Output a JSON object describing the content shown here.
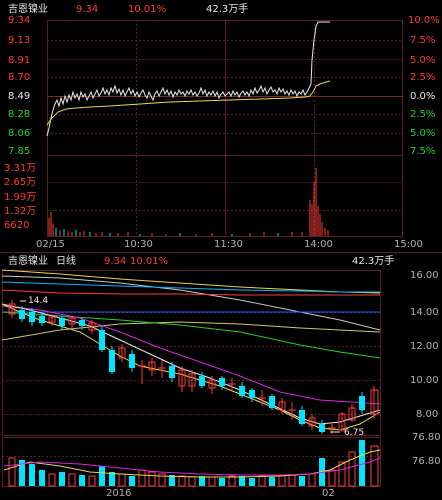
{
  "intraday": {
    "name": "吉恩镍业",
    "price": "9.34",
    "change_pct": "10.01%",
    "volume": "42.3万手",
    "price_labels": [
      "9.34",
      "9.13",
      "8.91",
      "8.70",
      "8.49",
      "8.28",
      "8.06",
      "7.85"
    ],
    "pct_labels": [
      "10.0%",
      "7.5%",
      "5.0%",
      "2.5%",
      "0.0%",
      "2.5%",
      "5.0%",
      "7.5%"
    ],
    "vol_labels": [
      "3.31万",
      "2.65万",
      "1.99万",
      "1.32万",
      "6620"
    ],
    "time_labels": [
      "02/15",
      "10:30",
      "11:30",
      "14:00",
      "15:00"
    ]
  },
  "daily": {
    "name": "吉恩镍业",
    "period": "日线",
    "price": "9.34",
    "change_pct": "10.01%",
    "volume": "42.3万手",
    "price_labels": [
      "16.00",
      "14.00",
      "12.00",
      "10.00",
      "8.00"
    ],
    "high_marker": "14.4",
    "low_marker": "6.75",
    "vol_labels": [
      "76.80",
      "76.80"
    ],
    "date_labels": [
      "2016",
      "02"
    ]
  },
  "colors": {
    "up": "#ff3b3b",
    "down": "#00e5ff",
    "flat": "#e8e8e8",
    "avg": "#e6d84a",
    "grid": "#5a2020"
  }
}
